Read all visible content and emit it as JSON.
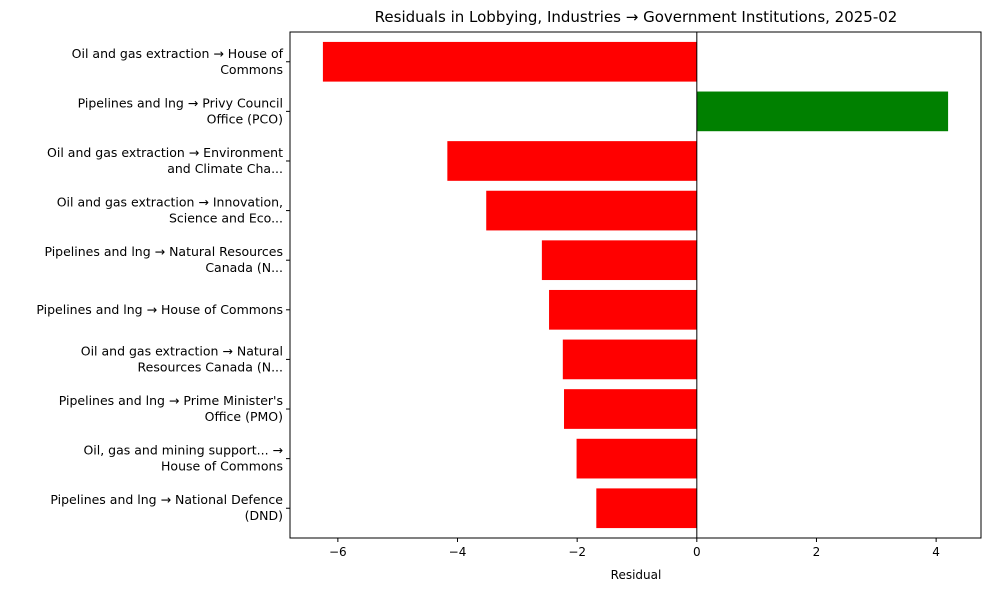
{
  "chart_data": {
    "type": "bar",
    "orientation": "horizontal",
    "title": "Residuals in Lobbying, Industries → Government Institutions, 2025-02",
    "xlabel": "Residual",
    "ylabel": "",
    "xlim": [
      -6.8,
      4.75
    ],
    "xticks": [
      -6,
      -4,
      -2,
      0,
      2,
      4
    ],
    "xtick_labels": [
      "−6",
      "−4",
      "−2",
      "0",
      "2",
      "4"
    ],
    "grid": false,
    "zero_line": true,
    "colors": {
      "positive": "#008000",
      "negative": "#ff0000"
    },
    "categories": [
      [
        "Oil and gas extraction → House of",
        "Commons"
      ],
      [
        "Pipelines and lng → Privy Council",
        "Office (PCO)"
      ],
      [
        "Oil and gas extraction → Environment",
        "and Climate Cha..."
      ],
      [
        "Oil and gas extraction → Innovation,",
        "Science and Eco..."
      ],
      [
        "Pipelines and lng → Natural Resources",
        "Canada (N..."
      ],
      [
        "Pipelines and lng → House of Commons"
      ],
      [
        "Oil and gas extraction → Natural",
        "Resources Canada (N..."
      ],
      [
        "Pipelines and lng → Prime Minister's",
        "Office (PMO)"
      ],
      [
        "Oil, gas and mining support... →",
        "House of Commons"
      ],
      [
        "Pipelines and lng → National Defence",
        "(DND)"
      ]
    ],
    "values": [
      -6.25,
      4.2,
      -4.17,
      -3.52,
      -2.59,
      -2.47,
      -2.24,
      -2.22,
      -2.01,
      -1.68
    ]
  }
}
